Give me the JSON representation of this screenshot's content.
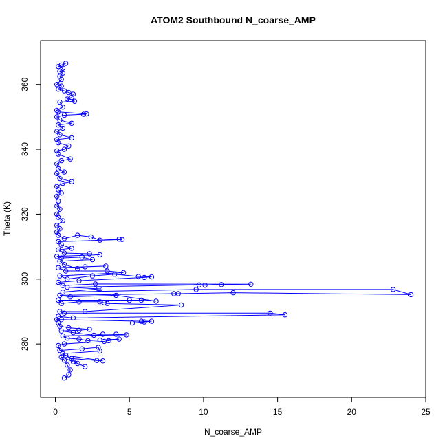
{
  "chart_data": {
    "type": "scatter",
    "title": "ATOM2 Southbound N_coarse_AMP",
    "xlabel": "N_coarse_AMP",
    "ylabel": "Theta (K)",
    "xlim": [
      -1.0,
      25.0
    ],
    "ylim": [
      263.5,
      373.5
    ],
    "xticks": [
      0,
      5,
      10,
      15,
      20,
      25
    ],
    "yticks": [
      280,
      300,
      320,
      340,
      360
    ],
    "grid": false,
    "legend": "none",
    "marker": "open-circle",
    "connected": true,
    "color": "#0000ff",
    "series": [
      {
        "points": [
          [
            0.6,
            269.5
          ],
          [
            0.9,
            270.5
          ],
          [
            1.0,
            272.0
          ],
          [
            0.8,
            273.5
          ],
          [
            0.6,
            275.0
          ],
          [
            0.4,
            276.0
          ],
          [
            1.2,
            274.5
          ],
          [
            2.0,
            273.0
          ],
          [
            1.5,
            274.0
          ],
          [
            0.7,
            276.5
          ],
          [
            3.2,
            274.8
          ],
          [
            2.8,
            274.9
          ],
          [
            1.1,
            275.5
          ],
          [
            0.5,
            277.0
          ],
          [
            3.0,
            277.8
          ],
          [
            2.9,
            279.0
          ],
          [
            1.8,
            278.5
          ],
          [
            0.3,
            278.0
          ],
          [
            0.2,
            279.5
          ],
          [
            0.6,
            280.0
          ],
          [
            3.3,
            280.8
          ],
          [
            3.6,
            281.0
          ],
          [
            4.3,
            281.5
          ],
          [
            3.0,
            281.2
          ],
          [
            2.2,
            281.0
          ],
          [
            1.6,
            281.5
          ],
          [
            0.8,
            281.8
          ],
          [
            0.5,
            282.5
          ],
          [
            4.8,
            282.8
          ],
          [
            4.1,
            283.0
          ],
          [
            3.2,
            283.0
          ],
          [
            2.6,
            282.7
          ],
          [
            1.2,
            283.5
          ],
          [
            0.4,
            284.0
          ],
          [
            1.6,
            284.2
          ],
          [
            2.3,
            284.5
          ],
          [
            0.9,
            285.0
          ],
          [
            0.3,
            285.5
          ],
          [
            0.2,
            286.5
          ],
          [
            5.2,
            286.5
          ],
          [
            6.0,
            286.8
          ],
          [
            6.5,
            287.0
          ],
          [
            5.8,
            287.0
          ],
          [
            0.4,
            287.5
          ],
          [
            0.1,
            287.5
          ],
          [
            0.2,
            288.5
          ],
          [
            1.2,
            288.0
          ],
          [
            15.5,
            289.0
          ],
          [
            14.5,
            289.5
          ],
          [
            0.6,
            289.5
          ],
          [
            0.3,
            290.0
          ],
          [
            2.0,
            290.0
          ],
          [
            8.5,
            292.0
          ],
          [
            3.5,
            292.5
          ],
          [
            3.3,
            292.7
          ],
          [
            3.0,
            293.0
          ],
          [
            1.6,
            293.0
          ],
          [
            0.4,
            292.5
          ],
          [
            0.2,
            293.5
          ],
          [
            5.0,
            293.5
          ],
          [
            5.8,
            293.5
          ],
          [
            6.8,
            293.2
          ],
          [
            4.1,
            295.0
          ],
          [
            1.0,
            294.5
          ],
          [
            0.3,
            295.0
          ],
          [
            8.0,
            295.5
          ],
          [
            8.3,
            295.5
          ],
          [
            12.0,
            295.8
          ],
          [
            24.0,
            295.2
          ],
          [
            22.8,
            296.8
          ],
          [
            9.5,
            296.8
          ],
          [
            0.5,
            296.0
          ],
          [
            3.0,
            297.0
          ],
          [
            2.9,
            297.0
          ],
          [
            0.8,
            297.5
          ],
          [
            9.7,
            298.2
          ],
          [
            10.1,
            298.1
          ],
          [
            11.2,
            298.3
          ],
          [
            13.2,
            298.4
          ],
          [
            2.7,
            298.5
          ],
          [
            0.5,
            298.0
          ],
          [
            0.2,
            299.0
          ],
          [
            1.6,
            299.5
          ],
          [
            6.0,
            300.5
          ],
          [
            6.5,
            300.7
          ],
          [
            5.6,
            300.8
          ],
          [
            4.0,
            301.5
          ],
          [
            2.5,
            301.0
          ],
          [
            0.8,
            300.0
          ],
          [
            0.3,
            301.0
          ],
          [
            4.6,
            302.0
          ],
          [
            3.5,
            302.5
          ],
          [
            0.7,
            302.5
          ],
          [
            0.2,
            303.5
          ],
          [
            3.4,
            304.0
          ],
          [
            2.0,
            303.8
          ],
          [
            1.5,
            303.2
          ],
          [
            0.6,
            304.5
          ],
          [
            0.3,
            305.5
          ],
          [
            2.5,
            306.0
          ],
          [
            1.8,
            306.8
          ],
          [
            0.4,
            306.5
          ],
          [
            0.1,
            307.0
          ],
          [
            3.0,
            307.5
          ],
          [
            2.3,
            307.8
          ],
          [
            0.6,
            308.0
          ],
          [
            0.2,
            309.0
          ],
          [
            1.1,
            309.5
          ],
          [
            0.4,
            310.5
          ],
          [
            0.2,
            311.5
          ],
          [
            4.5,
            312.2
          ],
          [
            4.3,
            312.3
          ],
          [
            3.0,
            312.0
          ],
          [
            2.4,
            313.0
          ],
          [
            1.5,
            313.5
          ],
          [
            0.6,
            312.5
          ],
          [
            0.2,
            313.5
          ],
          [
            0.1,
            314.5
          ],
          [
            0.3,
            315.5
          ],
          [
            0.1,
            316.5
          ],
          [
            0.5,
            318.0
          ],
          [
            0.2,
            319.0
          ],
          [
            0.1,
            320.0
          ],
          [
            0.3,
            321.5
          ],
          [
            0.1,
            322.5
          ],
          [
            0.2,
            324.0
          ],
          [
            0.1,
            325.5
          ],
          [
            0.4,
            326.5
          ],
          [
            0.2,
            327.5
          ],
          [
            0.1,
            328.5
          ],
          [
            0.5,
            329.5
          ],
          [
            1.1,
            330.0
          ],
          [
            0.3,
            331.0
          ],
          [
            0.1,
            332.5
          ],
          [
            0.6,
            333.0
          ],
          [
            0.2,
            334.0
          ],
          [
            0.1,
            335.5
          ],
          [
            0.4,
            336.5
          ],
          [
            1.0,
            337.0
          ],
          [
            0.2,
            338.5
          ],
          [
            0.1,
            339.5
          ],
          [
            0.6,
            340.0
          ],
          [
            0.9,
            341.0
          ],
          [
            0.2,
            342.0
          ],
          [
            0.1,
            343.0
          ],
          [
            1.1,
            343.5
          ],
          [
            0.3,
            344.5
          ],
          [
            0.1,
            345.5
          ],
          [
            0.5,
            346.5
          ],
          [
            0.2,
            347.5
          ],
          [
            1.1,
            348.0
          ],
          [
            0.3,
            349.0
          ],
          [
            0.1,
            350.0
          ],
          [
            0.6,
            350.5
          ],
          [
            1.9,
            350.8
          ],
          [
            2.1,
            350.9
          ],
          [
            0.2,
            351.5
          ],
          [
            0.1,
            352.0
          ],
          [
            0.5,
            353.0
          ],
          [
            0.3,
            354.5
          ],
          [
            1.3,
            354.8
          ],
          [
            0.8,
            355.5
          ],
          [
            1.1,
            356.0
          ],
          [
            1.2,
            357.0
          ],
          [
            0.9,
            357.5
          ],
          [
            0.6,
            358.0
          ],
          [
            0.2,
            358.5
          ],
          [
            0.4,
            359.5
          ],
          [
            0.1,
            360.0
          ],
          [
            0.4,
            361.5
          ],
          [
            0.3,
            362.5
          ],
          [
            0.5,
            363.5
          ],
          [
            0.3,
            364.0
          ],
          [
            0.5,
            365.0
          ],
          [
            0.2,
            365.5
          ],
          [
            0.4,
            366.0
          ],
          [
            0.7,
            366.5
          ]
        ]
      }
    ]
  }
}
